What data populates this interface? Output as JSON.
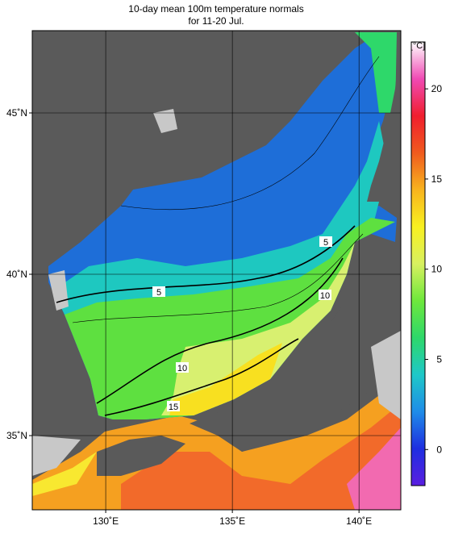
{
  "title": "10-day mean 100m temperature normals",
  "subtitle": "for 11-20 Jul.",
  "map": {
    "xlim": [
      127.1,
      141.65
    ],
    "ylim": [
      32.7,
      47.55
    ],
    "xticks": [
      {
        "value": 130,
        "label": "130˚E"
      },
      {
        "value": 135,
        "label": "135˚E"
      },
      {
        "value": 140,
        "label": "140˚E"
      }
    ],
    "yticks": [
      {
        "value": 35,
        "label": "35˚N"
      },
      {
        "value": 40,
        "label": "40˚N"
      },
      {
        "value": 45,
        "label": "45˚N"
      }
    ],
    "grid": true,
    "contour_labels": [
      5,
      5,
      10,
      10,
      15
    ]
  },
  "colorbar": {
    "unit": "[°C]",
    "lim": [
      -2,
      22.6
    ],
    "ticks": [
      0,
      5,
      10,
      15,
      20
    ],
    "colors": [
      "#5a1ee0",
      "#1e2ee0",
      "#1e8ce8",
      "#1ec8c8",
      "#2ed86a",
      "#6ee83c",
      "#d8f060",
      "#f8f020",
      "#f8b41e",
      "#f05a1e",
      "#f01e2e",
      "#f04ab4",
      "#ffffff"
    ]
  }
}
